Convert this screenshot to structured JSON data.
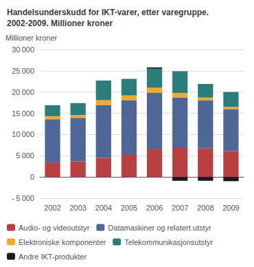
{
  "chart_data": {
    "type": "bar",
    "stacked": true,
    "title": "Handelsunderskudd for IKT-varer, etter varegruppe.\n2002-2009. Millioner kroner",
    "y_label": "Millioner kroner",
    "categories": [
      "2002",
      "2003",
      "2004",
      "2005",
      "2006",
      "2007",
      "2008",
      "2009"
    ],
    "series": [
      {
        "name": "Audio- og videoutstyr",
        "color": "#b94040",
        "values": [
          3400,
          3700,
          4500,
          5200,
          6500,
          7000,
          6700,
          6100
        ]
      },
      {
        "name": "Datamaskiner og relatert utstyr",
        "color": "#4f6796",
        "values": [
          10200,
          10200,
          12400,
          12900,
          13300,
          11700,
          11300,
          9900
        ]
      },
      {
        "name": "Elektroniske komponenter",
        "color": "#f0a830",
        "values": [
          700,
          700,
          1200,
          1100,
          1200,
          1100,
          700,
          500
        ]
      },
      {
        "name": "Telekommunikasjonsutstyr",
        "color": "#2a7d7b",
        "values": [
          2600,
          2800,
          4600,
          3900,
          4500,
          5100,
          3200,
          3500
        ]
      },
      {
        "name": "Andre IKT-produkter",
        "color": "#1a1a1a",
        "values": [
          0,
          0,
          0,
          0,
          300,
          -900,
          -900,
          -1000
        ]
      }
    ],
    "ylim": [
      -5000,
      30000
    ],
    "yticks": [
      {
        "value": -5000,
        "label": "- 5 000"
      },
      0,
      {
        "value": 5000,
        "label": "5 000"
      },
      {
        "value": 10000,
        "label": "10 000"
      },
      {
        "value": 15000,
        "label": "15 000"
      },
      {
        "value": 20000,
        "label": "20 000"
      },
      {
        "value": 25000,
        "label": "25 000"
      },
      {
        "value": 30000,
        "label": "30 000"
      }
    ],
    "grid": true,
    "legend": "bottom"
  }
}
